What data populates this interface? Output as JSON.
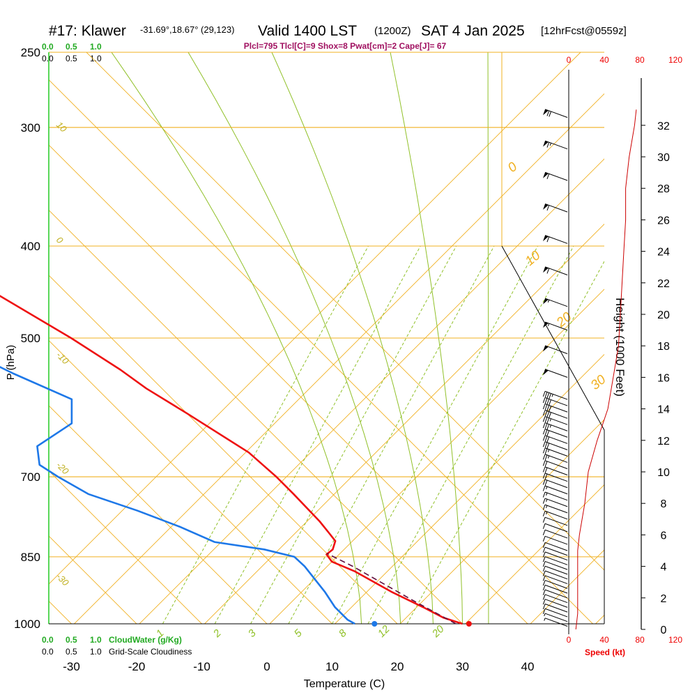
{
  "header": {
    "station": "#17: Klawer",
    "coords": "-31.69°,18.67° (29,123)",
    "valid": "Valid 1400 LST",
    "zulu": "(1200Z)",
    "date": "SAT 4 Jan 2025",
    "forecast": "[12hrFcst@0559z]",
    "indices": "Plcl=795 Tlcl[C]=9 Shox=8 Pwat[cm]=2 Cape[J]= 67"
  },
  "legend": {
    "cloudwater_ticks": [
      "0.0",
      "0.5",
      "1.0"
    ],
    "cloudiness_ticks": [
      "0.0",
      "0.5",
      "1.0"
    ],
    "cloudwater_label": "CloudWater (g/Kg)",
    "cloudiness_label": "Grid-Scale Cloudiness",
    "speed_ticks": [
      "0",
      "40",
      "80",
      "120"
    ],
    "speed_label": "Speed (kt)"
  },
  "colors": {
    "temperature": "#ee1111",
    "dewpoint": "#1e78e8",
    "isotherm_adiabat": "#f0b020",
    "moist_adiabat": "#90c028",
    "mixing_ratio": "#90c028",
    "parcel": "#601040",
    "header_indices": "#a01060",
    "wind_speed": "#cc0000",
    "cloudwater": "#22aa22"
  },
  "chart_data": {
    "type": "line",
    "title": "#17: Klawer -31.69°,18.67° (29,123) Valid 1400 LST (1200Z) SAT 4 Jan 2025 [12hrFcst@0559z]",
    "xlabel": "Temperature (C)",
    "ylabel": "P (hPa)",
    "y2label": "Height (1000 Feet)",
    "x_ticks": [
      -30,
      -20,
      -10,
      0,
      10,
      20,
      30,
      40
    ],
    "p_ticks": [
      250,
      300,
      400,
      500,
      700,
      850,
      1000
    ],
    "height_ticks": [
      0,
      2,
      4,
      6,
      8,
      10,
      12,
      14,
      16,
      18,
      20,
      22,
      24,
      26,
      28,
      30,
      32
    ],
    "y_scale": "log-pressure",
    "skew": "45 degree isotherms",
    "isotherm_labels": [
      {
        "value": "10"
      },
      {
        "value": "0"
      },
      {
        "value": "-10"
      },
      {
        "value": "-20"
      },
      {
        "value": "-30"
      }
    ],
    "theta_labels": [
      "0",
      "10",
      "20",
      "30"
    ],
    "mixing_ratio_labels": [
      "1",
      "2",
      "3",
      "5",
      "8",
      "12",
      "20"
    ],
    "series": [
      {
        "name": "Temperature",
        "points": [
          [
            1000,
            30
          ],
          [
            985,
            28
          ],
          [
            960,
            26.5
          ],
          [
            925,
            24
          ],
          [
            880,
            21.5
          ],
          [
            860,
            19.5
          ],
          [
            845,
            19.8
          ],
          [
            835,
            21.5
          ],
          [
            818,
            23.2
          ],
          [
            800,
            23.5
          ],
          [
            780,
            23.8
          ],
          [
            730,
            24
          ],
          [
            700,
            24
          ],
          [
            660,
            23.5
          ],
          [
            600,
            20
          ],
          [
            565,
            17.6
          ],
          [
            540,
            16.5
          ],
          [
            500,
            13.8
          ],
          [
            450,
            9.2
          ],
          [
            420,
            5.8
          ],
          [
            400,
            3.8
          ],
          [
            350,
            -1.2
          ],
          [
            320,
            -4.8
          ],
          [
            300,
            -6.6
          ],
          [
            275,
            -7.8
          ],
          [
            265,
            -8.2
          ]
        ]
      },
      {
        "name": "Dewpoint",
        "points": [
          [
            1000,
            13.5
          ],
          [
            990,
            13
          ],
          [
            960,
            13
          ],
          [
            925,
            13.8
          ],
          [
            870,
            14.6
          ],
          [
            850,
            14.5
          ],
          [
            835,
            11
          ],
          [
            820,
            4.5
          ],
          [
            790,
            1.5
          ],
          [
            760,
            -2.5
          ],
          [
            730,
            -7.5
          ],
          [
            700,
            -9.5
          ],
          [
            680,
            -10.5
          ],
          [
            650,
            -8
          ],
          [
            615,
            0.8
          ],
          [
            580,
            4.5
          ],
          [
            545,
            -0.5
          ],
          [
            505,
            -5.5
          ],
          [
            450,
            -7.5
          ],
          [
            420,
            -8.3
          ],
          [
            400,
            -10.5
          ],
          [
            385,
            -11
          ],
          [
            370,
            -11
          ],
          [
            340,
            -8
          ],
          [
            320,
            -6.8
          ],
          [
            305,
            -6.6
          ],
          [
            280,
            -8.8
          ],
          [
            265,
            -10
          ]
        ]
      },
      {
        "name": "Parcel",
        "points": [
          [
            1000,
            29
          ],
          [
            945,
            26
          ],
          [
            870,
            22
          ],
          [
            843,
            20
          ]
        ]
      }
    ],
    "surface_markers": {
      "temperature": 31,
      "dewpoint": 16.5
    },
    "wind_speed_kt": [
      [
        0,
        8
      ],
      [
        1,
        10
      ],
      [
        2,
        10
      ],
      [
        3,
        10
      ],
      [
        4,
        10
      ],
      [
        5,
        10
      ],
      [
        6,
        12
      ],
      [
        8,
        18
      ],
      [
        10,
        22
      ],
      [
        12,
        32
      ],
      [
        13,
        38
      ],
      [
        14,
        44
      ],
      [
        16,
        50
      ],
      [
        18,
        56
      ],
      [
        20,
        58
      ],
      [
        22,
        60
      ],
      [
        24,
        62
      ],
      [
        26,
        64
      ],
      [
        28,
        64
      ],
      [
        30,
        68
      ],
      [
        32,
        74
      ],
      [
        33,
        76
      ]
    ],
    "wind_barbs": [
      {
        "height": 0.2,
        "speed": 8
      },
      {
        "height": 0.5,
        "speed": 9
      },
      {
        "height": 0.8,
        "speed": 10
      },
      {
        "height": 1.1,
        "speed": 10
      },
      {
        "height": 1.4,
        "speed": 10
      },
      {
        "height": 1.7,
        "speed": 10
      },
      {
        "height": 2.0,
        "speed": 10
      },
      {
        "height": 2.3,
        "speed": 10
      },
      {
        "height": 2.6,
        "speed": 10
      },
      {
        "height": 2.9,
        "speed": 10
      },
      {
        "height": 3.2,
        "speed": 10
      },
      {
        "height": 3.5,
        "speed": 10
      },
      {
        "height": 3.8,
        "speed": 10
      },
      {
        "height": 4.1,
        "speed": 10
      },
      {
        "height": 4.4,
        "speed": 10
      },
      {
        "height": 4.7,
        "speed": 10
      },
      {
        "height": 5.0,
        "speed": 10
      },
      {
        "height": 5.4,
        "speed": 11
      },
      {
        "height": 5.8,
        "speed": 12
      },
      {
        "height": 6.2,
        "speed": 13
      },
      {
        "height": 6.6,
        "speed": 14
      },
      {
        "height": 7.0,
        "speed": 15
      },
      {
        "height": 7.4,
        "speed": 16
      },
      {
        "height": 7.8,
        "speed": 17
      },
      {
        "height": 8.2,
        "speed": 18
      },
      {
        "height": 8.6,
        "speed": 19
      },
      {
        "height": 9.0,
        "speed": 20
      },
      {
        "height": 9.4,
        "speed": 21
      },
      {
        "height": 9.8,
        "speed": 22
      },
      {
        "height": 10.2,
        "speed": 24
      },
      {
        "height": 10.6,
        "speed": 26
      },
      {
        "height": 11.0,
        "speed": 28
      },
      {
        "height": 11.4,
        "speed": 30
      },
      {
        "height": 11.8,
        "speed": 32
      },
      {
        "height": 12.2,
        "speed": 34
      },
      {
        "height": 12.6,
        "speed": 36
      },
      {
        "height": 13.0,
        "speed": 38
      },
      {
        "height": 13.4,
        "speed": 40
      },
      {
        "height": 13.8,
        "speed": 42
      },
      {
        "height": 14.2,
        "speed": 44
      },
      {
        "height": 14.6,
        "speed": 46
      },
      {
        "height": 16.0,
        "speed": 50
      },
      {
        "height": 17.5,
        "speed": 54
      },
      {
        "height": 19.0,
        "speed": 56
      },
      {
        "height": 20.5,
        "speed": 58
      },
      {
        "height": 22.5,
        "speed": 60
      },
      {
        "height": 24.5,
        "speed": 62
      },
      {
        "height": 26.5,
        "speed": 64
      },
      {
        "height": 28.5,
        "speed": 64
      },
      {
        "height": 30.5,
        "speed": 68
      },
      {
        "height": 32.5,
        "speed": 74
      }
    ]
  }
}
